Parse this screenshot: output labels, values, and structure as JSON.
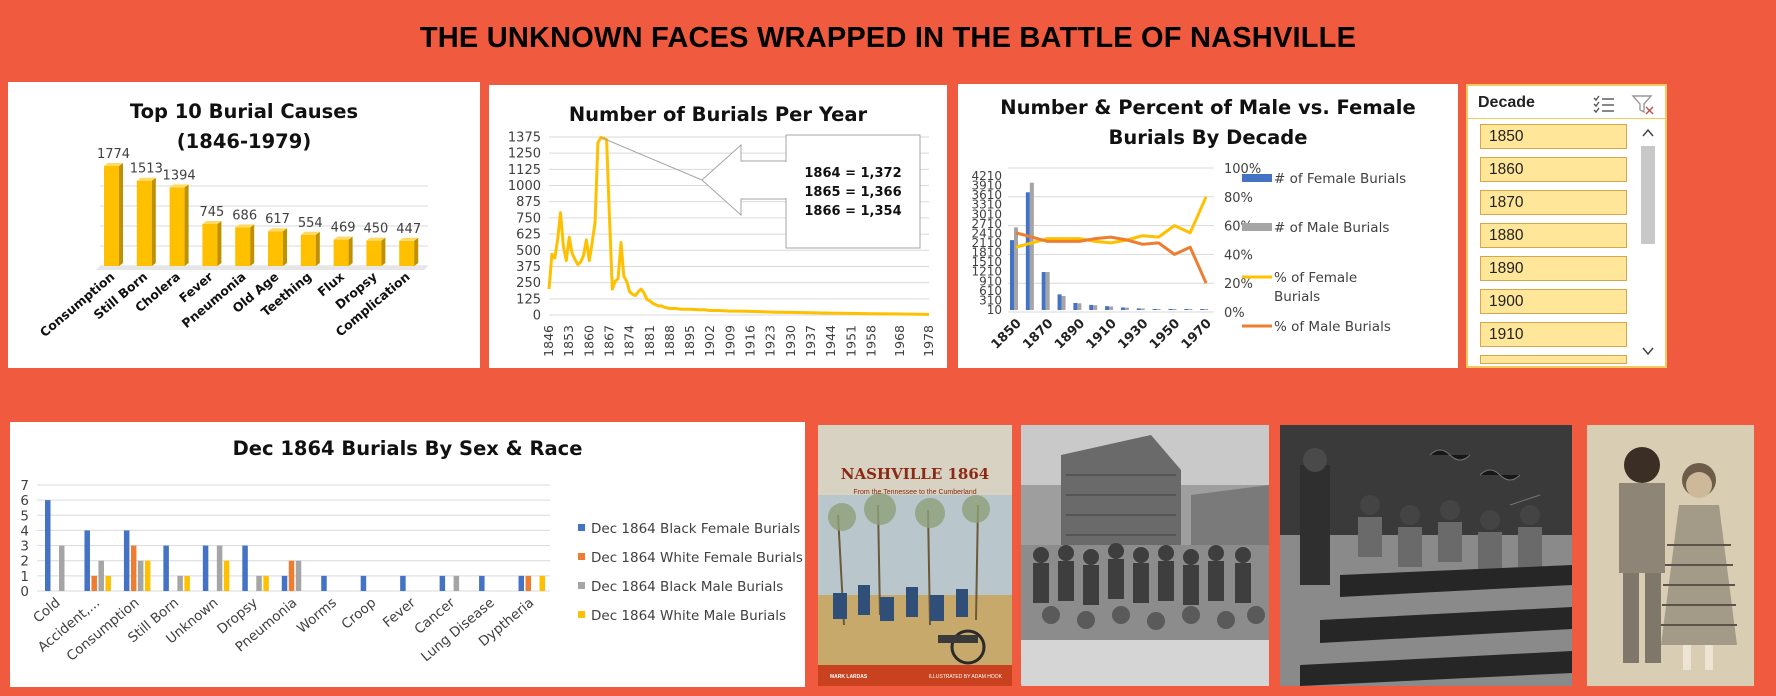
{
  "page_title": "THE UNKNOWN FACES WRAPPED IN THE BATTLE OF NASHVILLE",
  "chart_data": [
    {
      "id": "causes",
      "type": "bar",
      "title": "Top 10 Burial Causes",
      "subtitle": "(1846-1979)",
      "categories": [
        "Consumption",
        "Still Born",
        "Cholera",
        "Fever",
        "Pneumonia",
        "Old Age",
        "Teething",
        "Flux",
        "Dropsy",
        "Complication"
      ],
      "values": [
        1774,
        1513,
        1394,
        745,
        686,
        617,
        554,
        469,
        450,
        447
      ],
      "data_labels": [
        "1774",
        "1513",
        "1394",
        "745",
        "686",
        "617",
        "554",
        "469",
        "450",
        "447"
      ],
      "color": "#FFC000",
      "grid": true
    },
    {
      "id": "per_year",
      "type": "line",
      "title": "Number of Burials Per Year",
      "x": [
        1846,
        1847,
        1848,
        1849,
        1850,
        1851,
        1852,
        1853,
        1854,
        1855,
        1856,
        1857,
        1858,
        1859,
        1860,
        1861,
        1862,
        1863,
        1864,
        1865,
        1866,
        1867,
        1868,
        1869,
        1870,
        1871,
        1872,
        1873,
        1874,
        1875,
        1876,
        1877,
        1878,
        1879,
        1880,
        1881,
        1882,
        1883,
        1884,
        1885,
        1886,
        1888,
        1890,
        1892,
        1895,
        1898,
        1900,
        1902,
        1905,
        1909,
        1912,
        1916,
        1920,
        1925,
        1930,
        1937,
        1944,
        1951,
        1958,
        1968,
        1978
      ],
      "values": [
        200,
        470,
        440,
        580,
        790,
        530,
        420,
        600,
        480,
        430,
        390,
        410,
        460,
        580,
        420,
        560,
        720,
        1330,
        1372,
        1366,
        1354,
        750,
        200,
        260,
        280,
        560,
        300,
        260,
        180,
        160,
        150,
        180,
        200,
        170,
        120,
        110,
        90,
        80,
        70,
        70,
        60,
        50,
        50,
        45,
        45,
        40,
        40,
        35,
        35,
        30,
        30,
        28,
        25,
        22,
        20,
        18,
        15,
        12,
        10,
        8,
        5
      ],
      "x_ticks": [
        "1846",
        "1853",
        "1860",
        "1867",
        "1874",
        "1881",
        "1888",
        "1895",
        "1902",
        "1909",
        "1916",
        "1923",
        "1930",
        "1937",
        "1944",
        "1951",
        "1958",
        "1968",
        "1978"
      ],
      "y_ticks": [
        "0",
        "125",
        "250",
        "375",
        "500",
        "625",
        "750",
        "875",
        "1000",
        "1125",
        "1250",
        "1375"
      ],
      "ylim": [
        0,
        1375
      ],
      "callout": [
        "1864 = 1,372",
        "1865 = 1,366",
        "1866 = 1,354"
      ],
      "color": "#FFC000"
    },
    {
      "id": "sex_decade",
      "type": "bar",
      "title": "Number & Percent of Male vs. Female",
      "subtitle": "Burials By Decade",
      "categories": [
        "1850",
        "1860",
        "1870",
        "1880",
        "1890",
        "1900",
        "1910",
        "1920",
        "1930",
        "1940",
        "1950",
        "1960",
        "1970"
      ],
      "x_tick_labels": [
        "1850",
        "1870",
        "1890",
        "1910",
        "1930",
        "1950",
        "1970"
      ],
      "y_ticks": [
        "10",
        "310",
        "610",
        "910",
        "1210",
        "1510",
        "1810",
        "2110",
        "2410",
        "2710",
        "3010",
        "3310",
        "3610",
        "3910",
        "4210"
      ],
      "y2_ticks": [
        "0%",
        "20%",
        "40%",
        "60%",
        "80%",
        "100%"
      ],
      "ylim": [
        10,
        4210
      ],
      "series": [
        {
          "name": "# of Female Burials",
          "type": "bar",
          "color": "#4472C4",
          "values": [
            2200,
            3700,
            1200,
            500,
            230,
            170,
            130,
            90,
            60,
            40,
            30,
            20,
            40
          ]
        },
        {
          "name": "# of Male Burials",
          "type": "bar",
          "color": "#A5A5A5",
          "values": [
            2600,
            4000,
            1200,
            450,
            220,
            160,
            120,
            85,
            55,
            35,
            25,
            15,
            10
          ]
        },
        {
          "name": "% of Female Burials",
          "type": "line",
          "color": "#FFC000",
          "values": [
            45,
            48,
            51,
            51,
            51,
            49,
            48,
            50,
            53,
            52,
            60,
            55,
            80
          ]
        },
        {
          "name": "% of Male Burials",
          "type": "line",
          "color": "#ED7D31",
          "values": [
            55,
            52,
            49,
            49,
            49,
            51,
            52,
            50,
            47,
            48,
            40,
            45,
            20
          ]
        }
      ]
    },
    {
      "id": "dec1864",
      "type": "bar",
      "title": "Dec 1864 Burials By Sex & Race",
      "categories": [
        "Cold",
        "Accident,...",
        "Consumption",
        "Still Born",
        "Unknown",
        "Dropsy",
        "Pneumonia",
        "Worms",
        "Croop",
        "Fever",
        "Cancer",
        "Lung Disease",
        "Dyptheria"
      ],
      "y_ticks": [
        "0",
        "1",
        "2",
        "3",
        "4",
        "5",
        "6",
        "7"
      ],
      "ylim": [
        0,
        7
      ],
      "series": [
        {
          "name": "Dec 1864 Black Female Burials",
          "color": "#4472C4",
          "values": [
            6,
            4,
            4,
            3,
            3,
            3,
            1,
            1,
            1,
            1,
            1,
            1,
            1
          ]
        },
        {
          "name": "Dec 1864 White Female Burials",
          "color": "#ED7D31",
          "values": [
            0,
            1,
            3,
            0,
            0,
            0,
            2,
            0,
            0,
            0,
            0,
            0,
            1
          ]
        },
        {
          "name": "Dec 1864 Black Male Burials",
          "color": "#A5A5A5",
          "values": [
            3,
            2,
            2,
            1,
            3,
            1,
            2,
            0,
            0,
            0,
            1,
            0,
            0
          ]
        },
        {
          "name": "Dec 1864 White Male Burials",
          "color": "#FFC000",
          "values": [
            0,
            1,
            2,
            1,
            2,
            1,
            0,
            0,
            0,
            0,
            0,
            0,
            1
          ]
        }
      ]
    }
  ],
  "slicer": {
    "header": "Decade",
    "items": [
      "1850",
      "1860",
      "1870",
      "1880",
      "1890",
      "1900",
      "1910"
    ],
    "icons": [
      "multi-select-icon",
      "clear-filter-icon"
    ]
  },
  "book": {
    "title": "NASHVILLE 1864",
    "subtitle": "From the Tennessee to the Cumberland",
    "author": "MARK LARDAS",
    "illustrator": "ILLUSTRATED BY ADAM HOOK"
  }
}
